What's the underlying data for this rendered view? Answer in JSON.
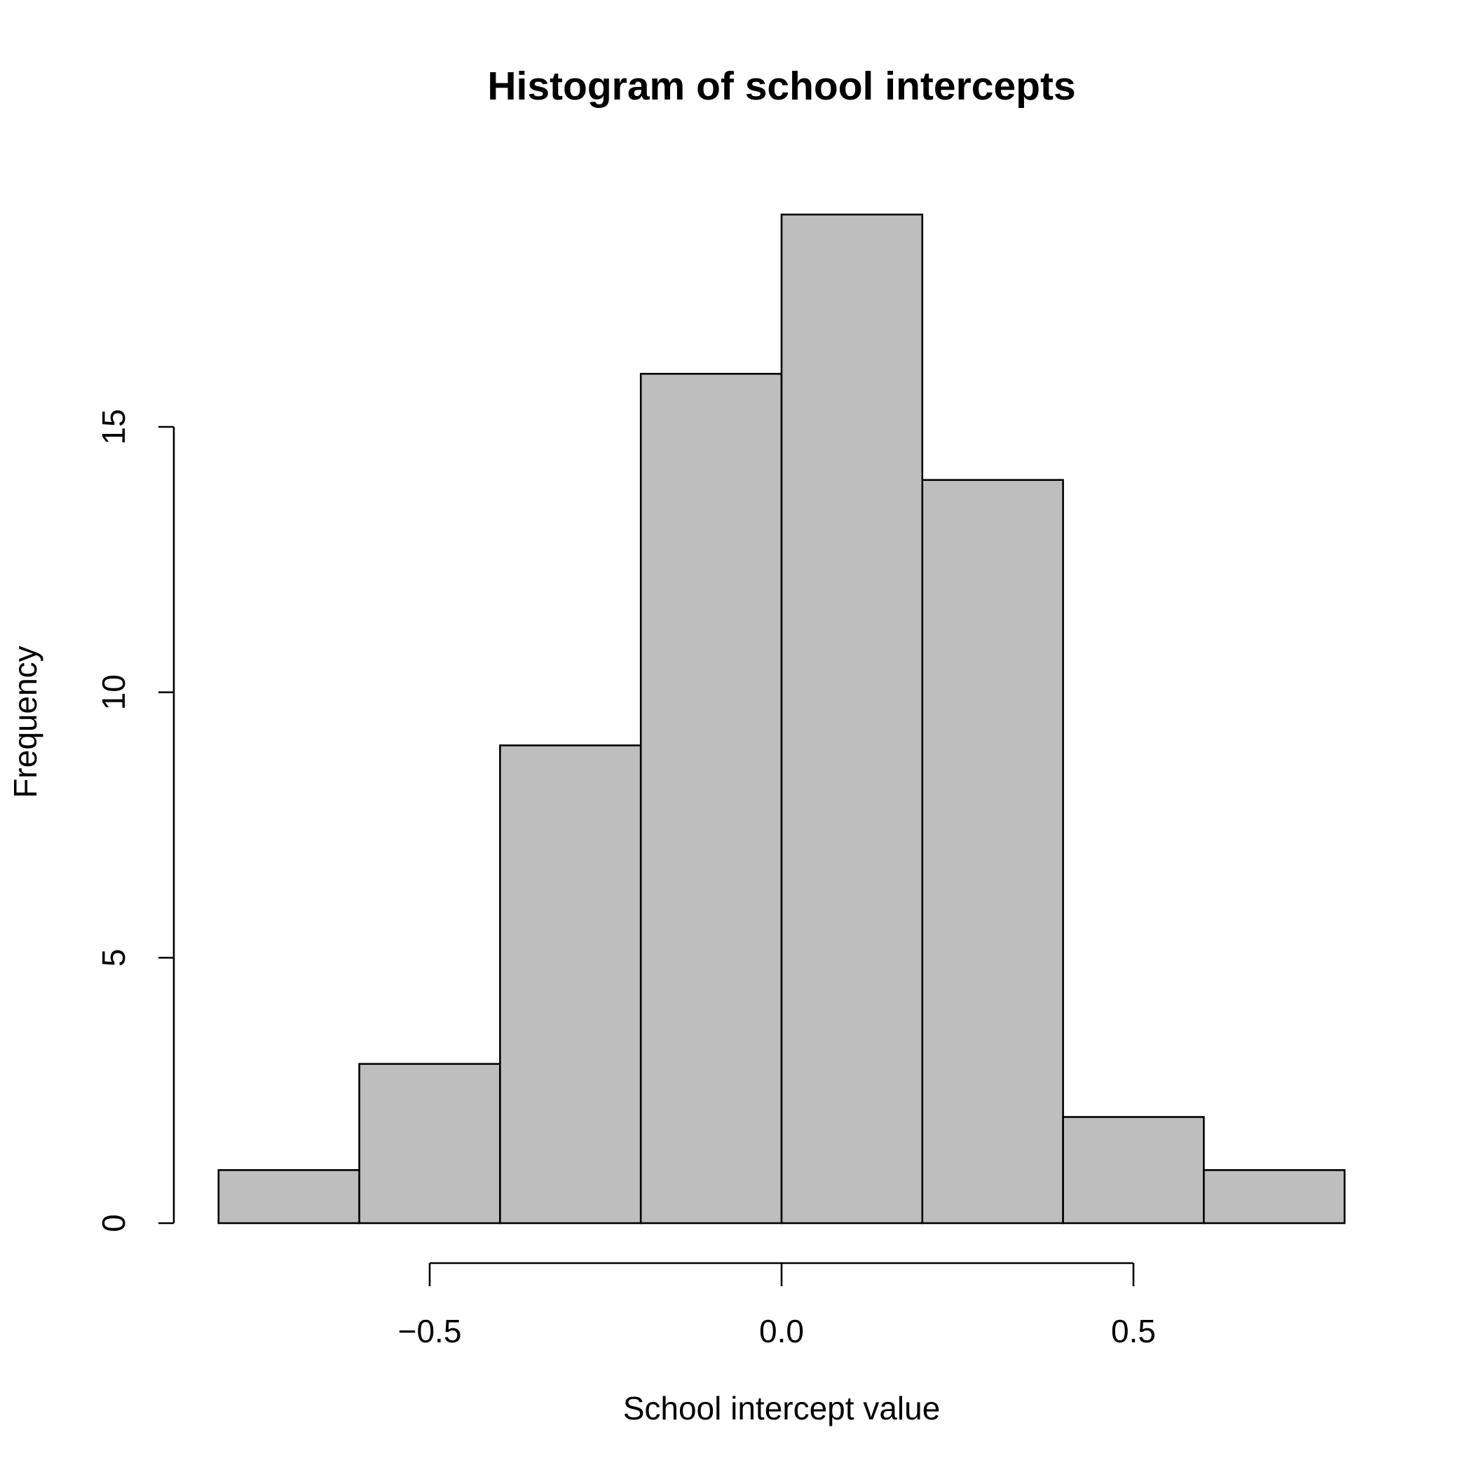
{
  "chart_data": {
    "type": "bar",
    "subtype": "histogram",
    "title": "Histogram of school intercepts",
    "xlabel": "School intercept value",
    "ylabel": "Frequency",
    "bins": [
      {
        "x0": -0.8,
        "x1": -0.6,
        "count": 1
      },
      {
        "x0": -0.6,
        "x1": -0.4,
        "count": 3
      },
      {
        "x0": -0.4,
        "x1": -0.2,
        "count": 9
      },
      {
        "x0": -0.2,
        "x1": 0.0,
        "count": 16
      },
      {
        "x0": 0.0,
        "x1": 0.2,
        "count": 19
      },
      {
        "x0": 0.2,
        "x1": 0.4,
        "count": 14
      },
      {
        "x0": 0.4,
        "x1": 0.6,
        "count": 2
      },
      {
        "x0": 0.6,
        "x1": 0.8,
        "count": 1
      }
    ],
    "x_ticks": [
      {
        "value": -0.5,
        "label": "−0.5"
      },
      {
        "value": 0.0,
        "label": "0.0"
      },
      {
        "value": 0.5,
        "label": "0.5"
      }
    ],
    "y_ticks": [
      {
        "value": 0,
        "label": "0"
      },
      {
        "value": 5,
        "label": "5"
      },
      {
        "value": 10,
        "label": "10"
      },
      {
        "value": 15,
        "label": "15"
      }
    ],
    "bar_fill": "#bebebe",
    "bar_stroke": "#000000",
    "grid": false,
    "legend": "none"
  }
}
